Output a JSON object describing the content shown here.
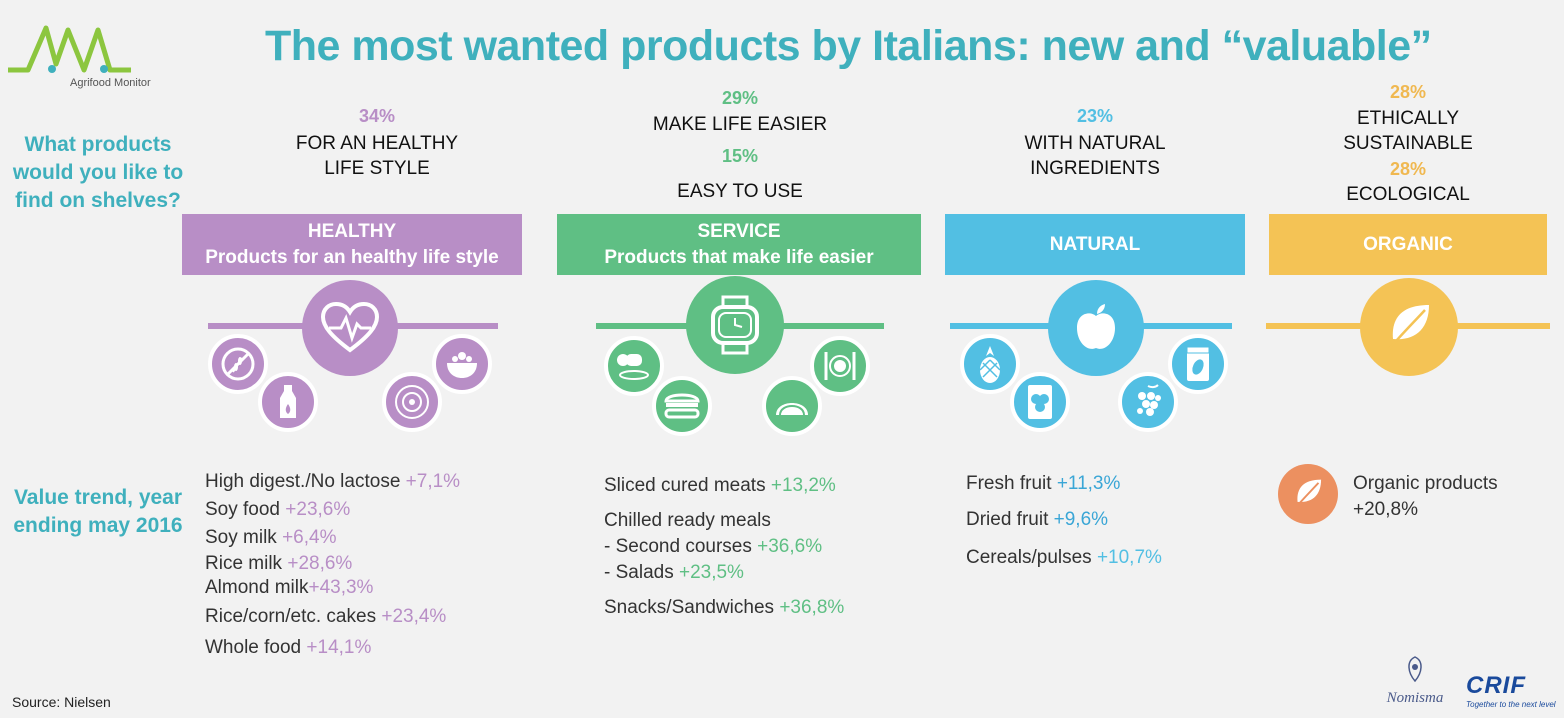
{
  "header": {
    "title": "The most wanted products by Italians: new and “valuable”",
    "logo_text": "Agrifood Monitor"
  },
  "side": {
    "question": "What products would you like to find on shelves?",
    "trend": "Value trend, year ending may 2016"
  },
  "colors": {
    "title": "#3fb0bd",
    "healthy": "#b88ec6",
    "service": "#5fbf84",
    "natural": "#52bfe3",
    "organic": "#f4c355",
    "organic_icon": "#ec9060"
  },
  "healthy": {
    "pct1": "34%",
    "label1_line1": "FOR AN HEALTHY",
    "label1_line2": "LIFE STYLE",
    "banner_title": "HEALTHY",
    "banner_sub": "Products for an healthy life style",
    "icons": [
      "heart-pulse-icon",
      "no-gluten-icon",
      "milk-bottle-icon",
      "flower-cake-icon",
      "rice-bowl-icon"
    ],
    "items": [
      {
        "label": "High digest./No lactose ",
        "value": "+7,1%"
      },
      {
        "label": "Soy food ",
        "value": "+23,6%"
      },
      {
        "label": "Soy milk ",
        "value": "+6,4%"
      },
      {
        "label": "Rice milk ",
        "value": "+28,6%"
      },
      {
        "label": "Almond milk",
        "value": "+43,3%"
      },
      {
        "label": "Rice/corn/etc. cakes  ",
        "value": "+23,4%"
      },
      {
        "label": "Whole food  ",
        "value": "+14,1%"
      }
    ]
  },
  "service": {
    "pct1": "29%",
    "label1": "MAKE LIFE EASIER",
    "pct2": "15%",
    "label2": "EASY TO USE",
    "banner_title": "SERVICE",
    "banner_sub": "Products that make life easier",
    "icons": [
      "watch-icon",
      "cured-meat-icon",
      "sandwich-icon",
      "taco-icon",
      "cutlery-plate-icon"
    ],
    "item1": {
      "label": "Sliced cured meats ",
      "value": "+13,2%"
    },
    "item2": {
      "label": "Chilled ready meals"
    },
    "item3": {
      "label": "- Second courses ",
      "value": "+36,6%"
    },
    "item4": {
      "label": "- Salads ",
      "value": "+23,5%"
    },
    "item5": {
      "label": "Snacks/Sandwiches ",
      "value": "+36,8%"
    }
  },
  "natural": {
    "pct1": "23%",
    "label1_line1": "WITH NATURAL",
    "label1_line2": "INGREDIENTS",
    "banner_title": "NATURAL",
    "icons": [
      "apple-icon",
      "pineapple-icon",
      "strawberry-pack-icon",
      "grapes-icon",
      "dried-fruit-pack-icon"
    ],
    "items": [
      {
        "label": "Fresh fruit ",
        "value": "+11,3%"
      },
      {
        "label": "Dried fruit  ",
        "value": "+9,6%"
      },
      {
        "label": "Cereals/pulses  ",
        "value": "+10,7%"
      }
    ]
  },
  "organic": {
    "pct1": "28%",
    "label1_line1": "ETHICALLY",
    "label1_line2": "SUSTAINABLE",
    "pct2": "28%",
    "label2": "ECOLOGICAL",
    "banner_title": "ORGANIC",
    "icons": [
      "leaf-icon"
    ],
    "item_label": "Organic products",
    "item_value": "+20,8%"
  },
  "footer": {
    "source": "Source: Nielsen",
    "nomisma": "Nomisma",
    "crif": "CRIF",
    "crif_tagline": "Together to the next level"
  }
}
